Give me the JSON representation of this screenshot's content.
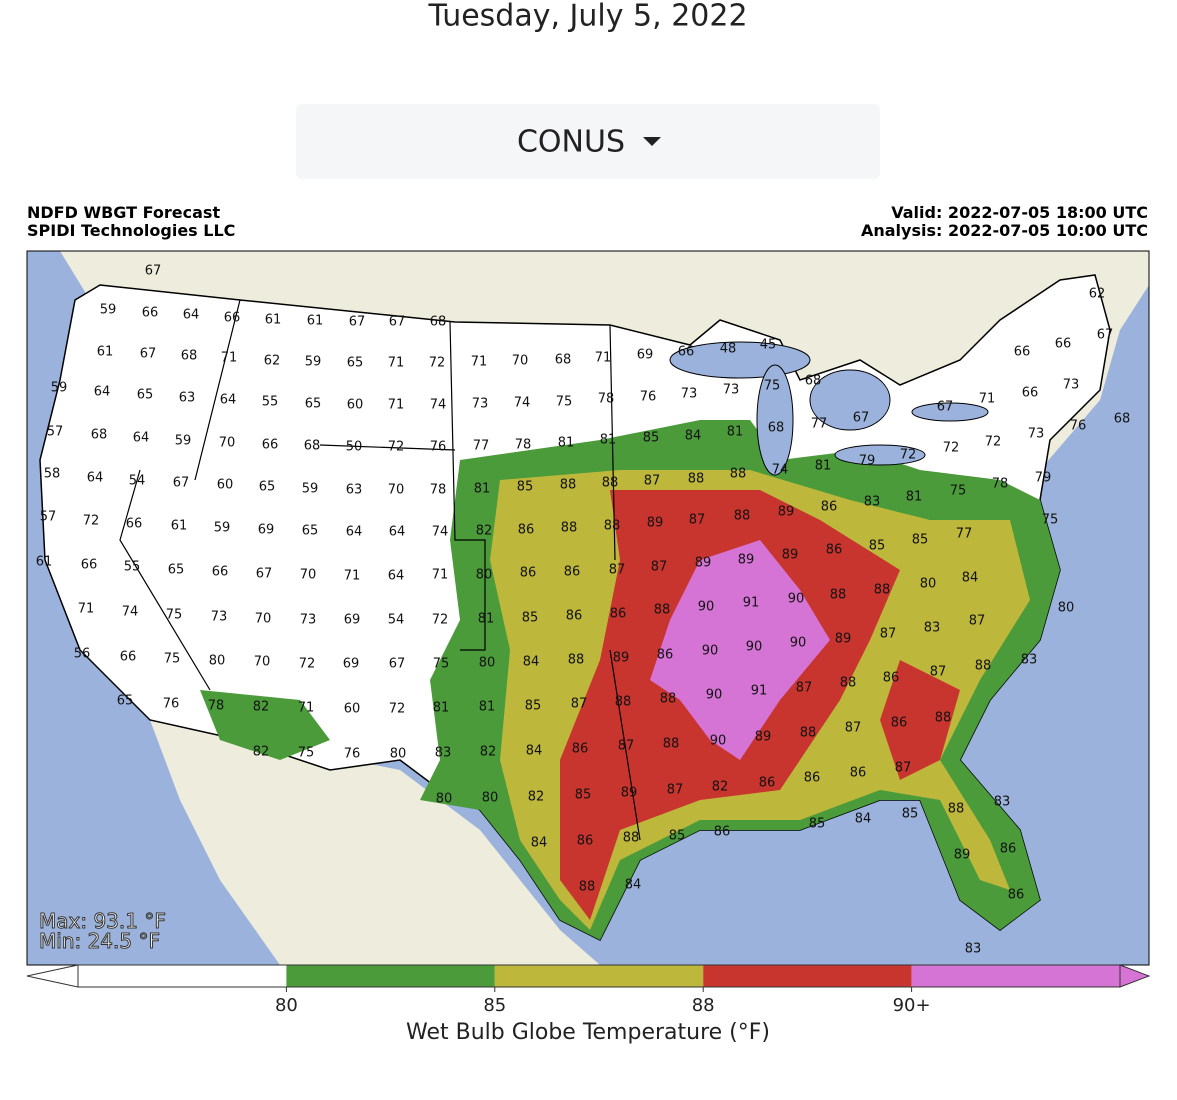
{
  "header": {
    "date": "Tuesday, July 5, 2022"
  },
  "dropdown": {
    "label": "CONUS"
  },
  "map": {
    "title_left": [
      "NDFD WBGT Forecast",
      "SPIDI Technologies LLC"
    ],
    "title_right": [
      "Valid: 2022-07-05 18:00 UTC",
      "Analysis: 2022-07-05 10:00 UTC"
    ],
    "max_text": "Max: 93.1 °F",
    "min_text": "Min: 24.5 °F",
    "labels": [
      67,
      62,
      67,
      59,
      66,
      64,
      66,
      61,
      61,
      67,
      67,
      68,
      45,
      48,
      61,
      67,
      68,
      71,
      62,
      59,
      65,
      71,
      72,
      71,
      70,
      68,
      71,
      69,
      66,
      66,
      66,
      59,
      64,
      65,
      63,
      64,
      55,
      65,
      60,
      71,
      74,
      73,
      74,
      75,
      78,
      76,
      73,
      73,
      75,
      68,
      67,
      71,
      66,
      73,
      68,
      76,
      73,
      57,
      68,
      64,
      59,
      70,
      66,
      68,
      50,
      72,
      76,
      77,
      78,
      81,
      81,
      85,
      84,
      81,
      68,
      77,
      67,
      72,
      72,
      58,
      64,
      54,
      67,
      60,
      65,
      59,
      63,
      70,
      78,
      81,
      85,
      88,
      88,
      87,
      88,
      88,
      74,
      81,
      79,
      72,
      75,
      78,
      79,
      81,
      83,
      86,
      89,
      57,
      72,
      66,
      61,
      59,
      69,
      65,
      64,
      64,
      74,
      82,
      86,
      88,
      88,
      89,
      87,
      88,
      75,
      77,
      85,
      85,
      86,
      89,
      89,
      61,
      66,
      55,
      65,
      66,
      67,
      70,
      71,
      64,
      71,
      80,
      86,
      86,
      87,
      87,
      89,
      84,
      80,
      88,
      88,
      90,
      91,
      71,
      74,
      75,
      73,
      70,
      73,
      69,
      54,
      72,
      81,
      85,
      86,
      86,
      88,
      90,
      80,
      87,
      83,
      87,
      89,
      90,
      90,
      90,
      56,
      66,
      75,
      80,
      70,
      72,
      69,
      67,
      75,
      80,
      84,
      88,
      89,
      86,
      83,
      88,
      87,
      86,
      88,
      87,
      91,
      90,
      65,
      76,
      78,
      82,
      71,
      60,
      72,
      81,
      81,
      85,
      87,
      88,
      88,
      88,
      86,
      87,
      88,
      89,
      90,
      82,
      75,
      76,
      80,
      83,
      82,
      84,
      86,
      87,
      88,
      87,
      86,
      86,
      86,
      82,
      87,
      89,
      85,
      82,
      80,
      80,
      83,
      88,
      85,
      84,
      85,
      86,
      85,
      88,
      86,
      84,
      86,
      89,
      84,
      88,
      86,
      83
    ]
  },
  "colorbar": {
    "label": "Wet Bulb Globe Temperature (°F)",
    "ticks": [
      80,
      85,
      88,
      {
        "value": 90,
        "label": "90+"
      }
    ],
    "colors": [
      "#ffffff",
      "#4b9b3b",
      "#bdb73c",
      "#c8342e",
      "#d674d5"
    ]
  }
}
